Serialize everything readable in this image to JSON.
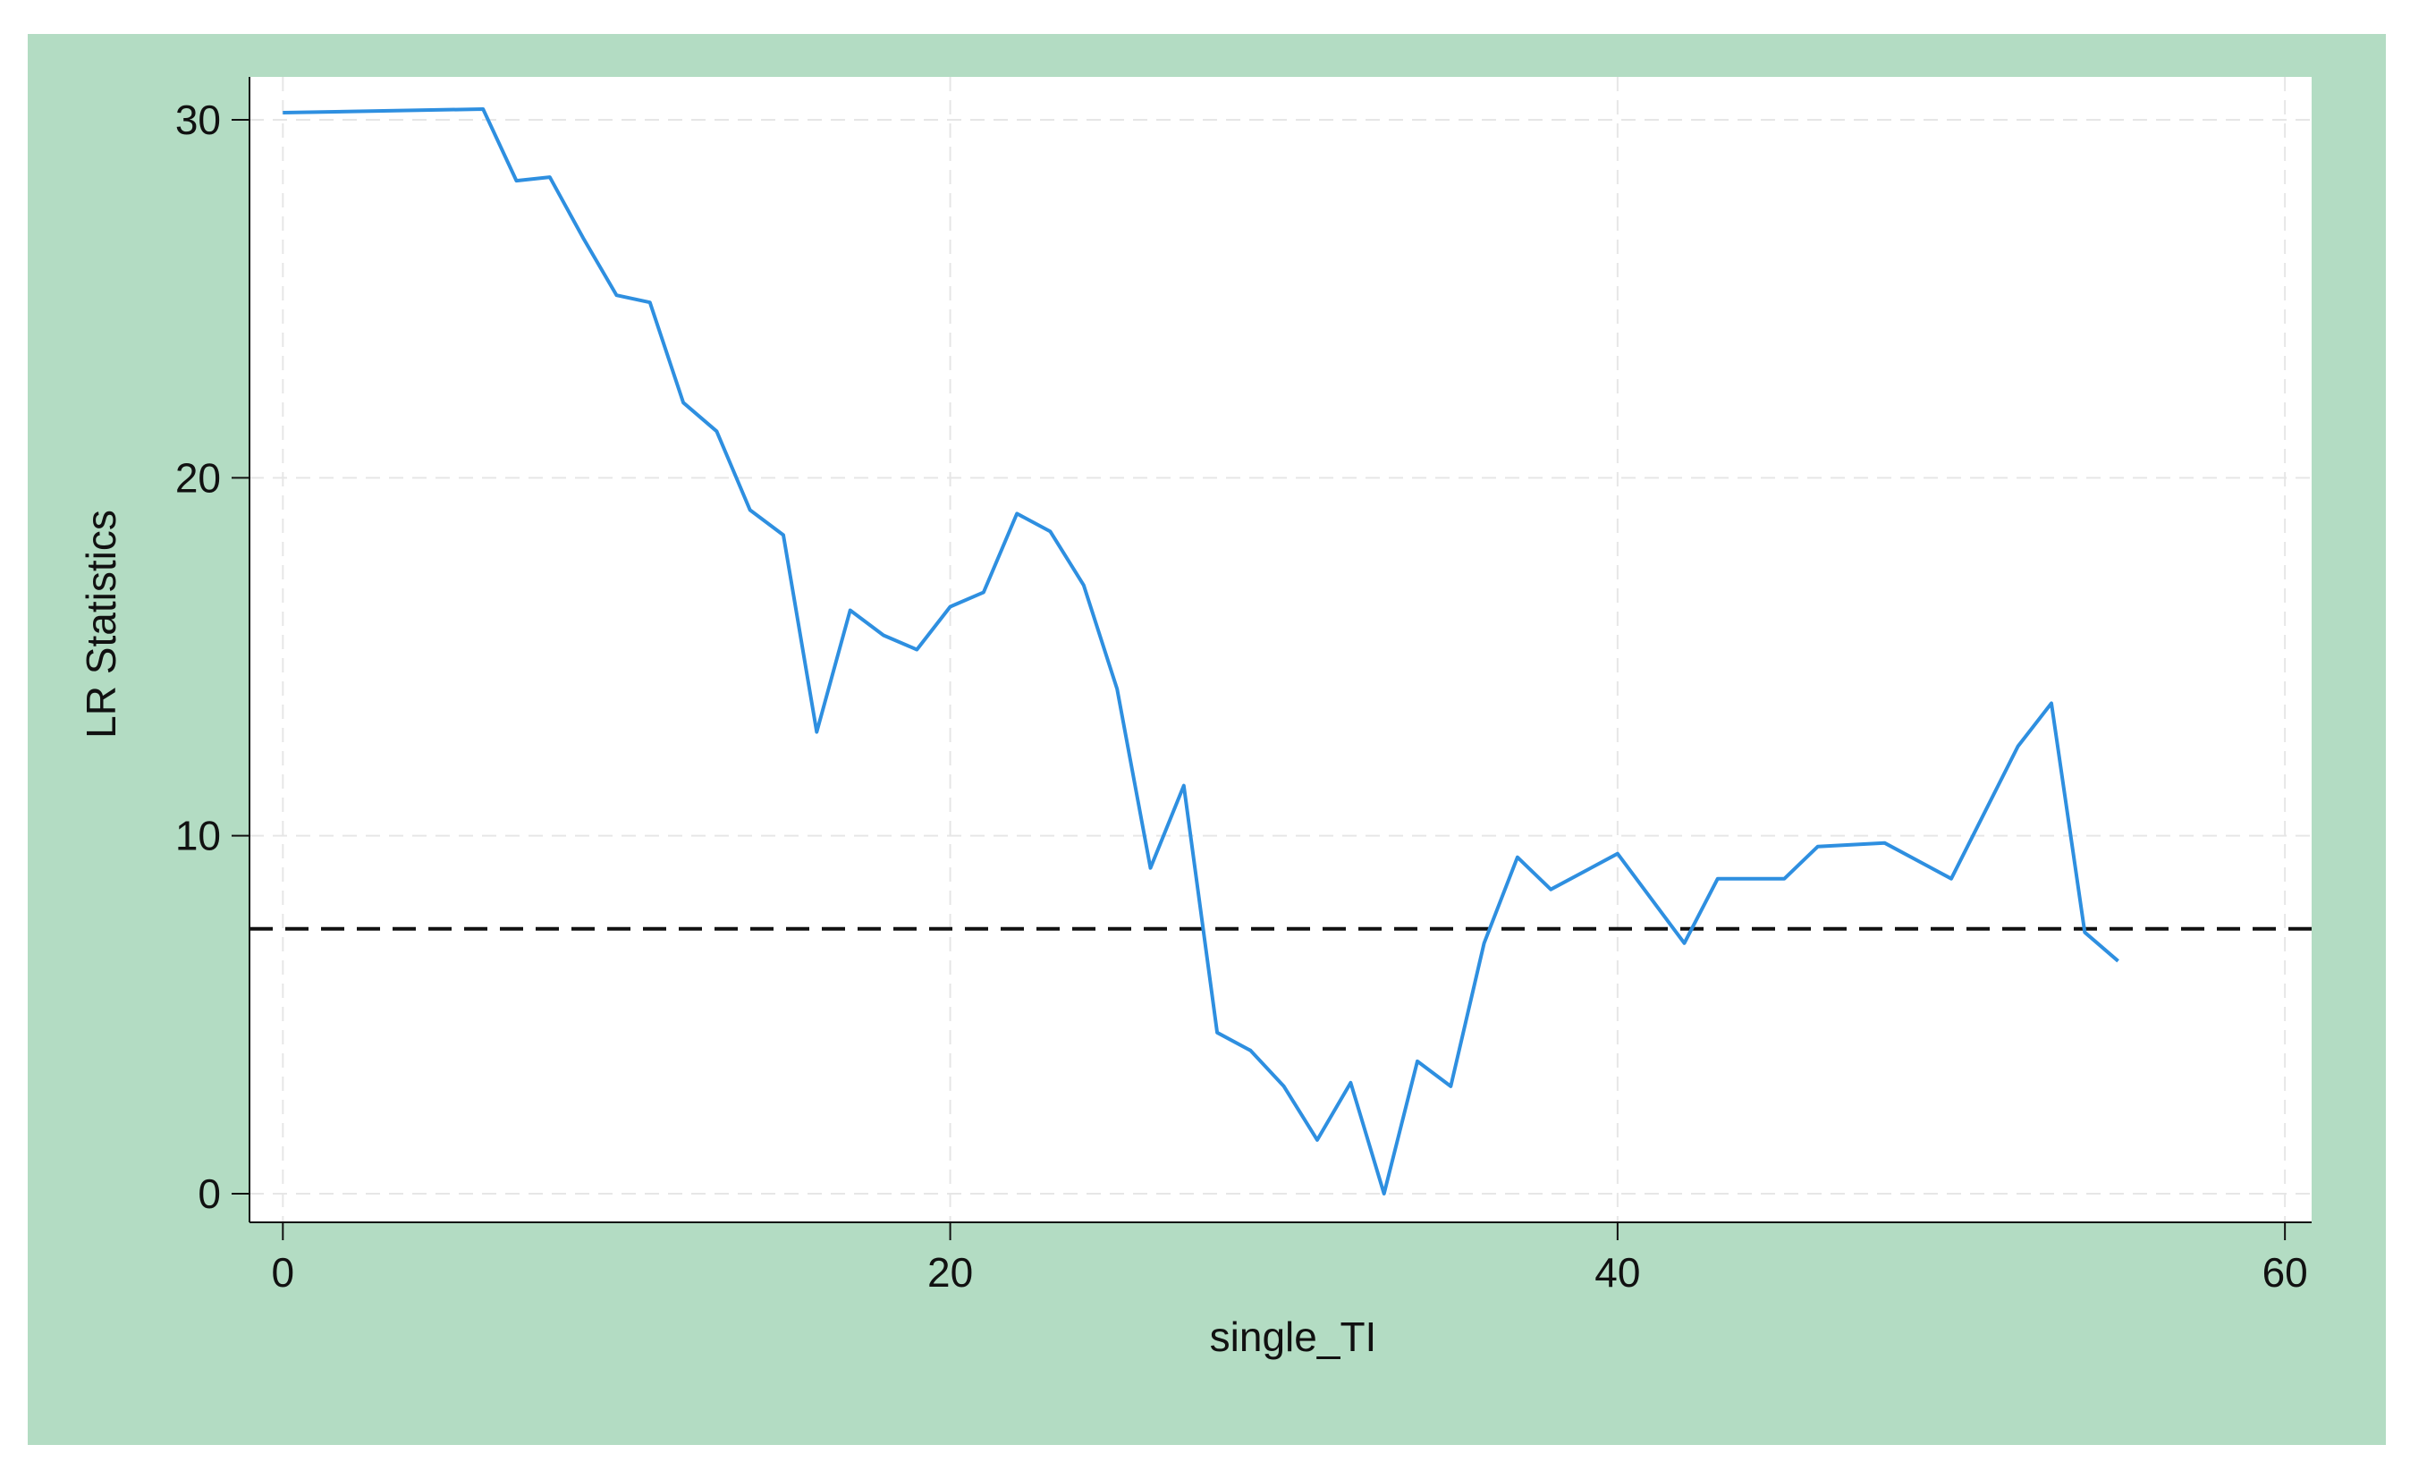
{
  "chart_data": {
    "type": "line",
    "xlabel": "single_TI",
    "ylabel": "LR Statistics",
    "xlim": [
      -1,
      60.8
    ],
    "ylim": [
      -0.8,
      31.2
    ],
    "xticks": [
      0,
      20,
      40,
      60
    ],
    "yticks": [
      0,
      10,
      20,
      30
    ],
    "xtick_labels": [
      "0",
      "20",
      "40",
      "60"
    ],
    "ytick_labels": [
      "0",
      "10",
      "20",
      "30"
    ],
    "grid": true,
    "legend": "none",
    "series": [
      {
        "color": "#2e8fe0",
        "x": [
          0,
          6,
          7,
          8,
          9,
          10,
          11,
          12,
          13,
          14,
          15,
          16,
          17,
          18,
          19,
          20,
          21,
          22,
          23,
          24,
          25,
          26,
          27,
          28,
          29,
          30,
          31,
          32,
          33,
          34,
          35,
          36,
          37,
          38,
          40,
          42,
          43,
          45,
          46,
          48,
          50,
          52,
          53,
          54,
          55
        ],
        "y": [
          30.2,
          30.3,
          28.3,
          28.4,
          26.7,
          25.1,
          24.9,
          22.1,
          21.3,
          19.1,
          18.4,
          12.9,
          16.3,
          15.6,
          15.2,
          16.4,
          16.8,
          19.0,
          18.5,
          17.0,
          14.1,
          9.1,
          11.4,
          4.5,
          4.0,
          3.0,
          1.5,
          3.1,
          0.0,
          3.7,
          3.0,
          7.0,
          9.4,
          8.5,
          9.5,
          7.0,
          8.8,
          8.8,
          9.7,
          9.8,
          8.8,
          12.5,
          13.7,
          7.3,
          6.5
        ]
      }
    ],
    "reference_line": {
      "y": 7.4,
      "style": "dashed",
      "color": "#111111"
    }
  }
}
